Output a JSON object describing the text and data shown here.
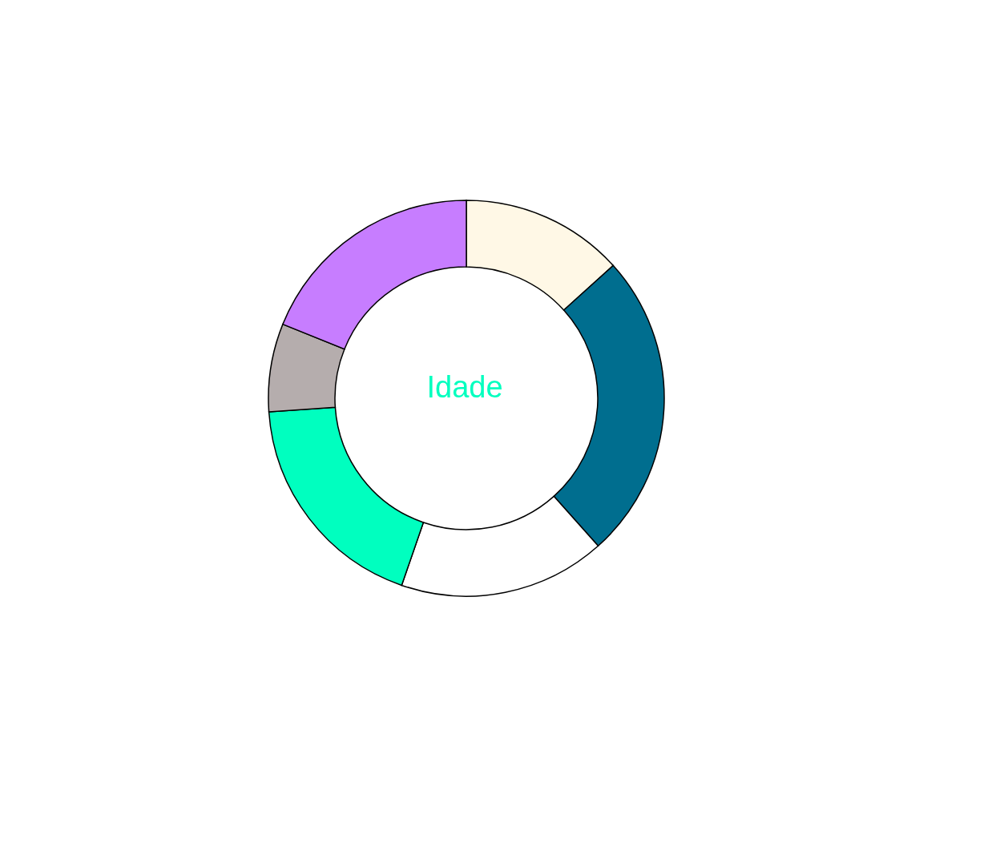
{
  "chart_data": {
    "type": "donut",
    "title": "Idade",
    "categories": [
      null,
      null,
      null,
      null,
      null,
      null
    ],
    "values": [
      13.3,
      25.1,
      16.9,
      18.6,
      7.2,
      18.9
    ],
    "colors": [
      "#fff8e6",
      "#006e8f",
      "#ffffff",
      "#00ffbf",
      "#b5adad",
      "#c77dff"
    ]
  }
}
